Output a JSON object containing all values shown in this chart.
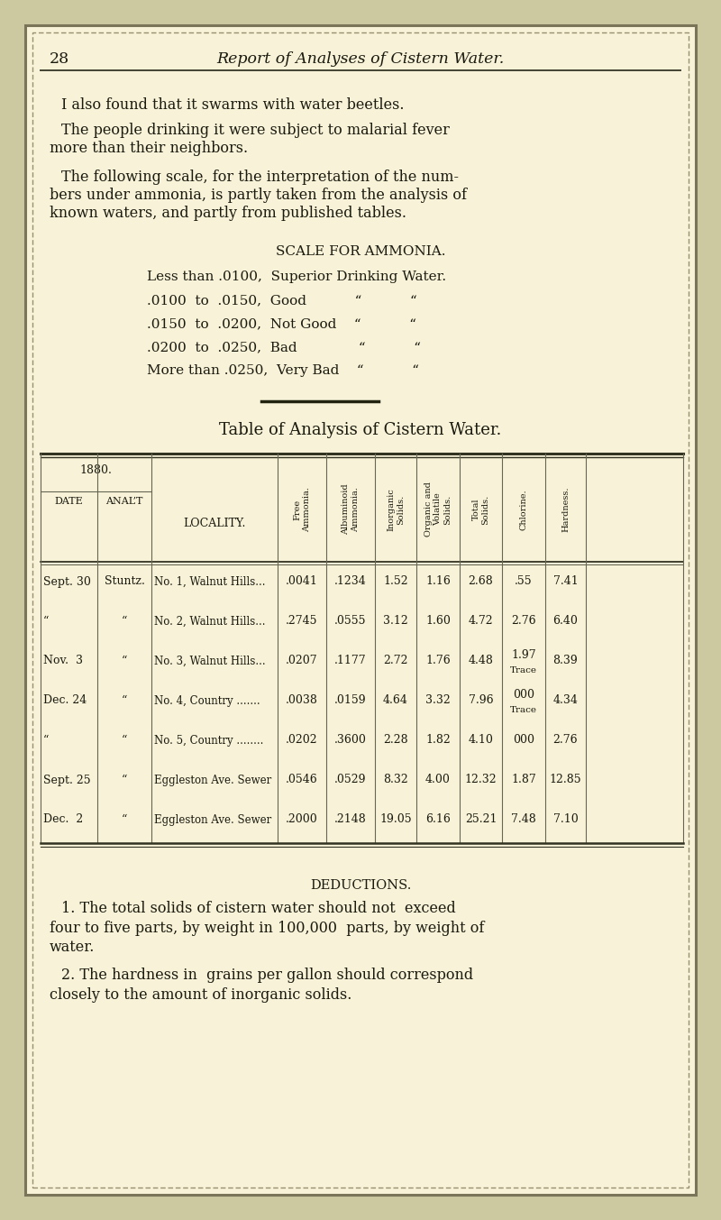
{
  "bg_color": "#f7f2d8",
  "outer_border_color": "#9a9070",
  "text_color": "#1a1a0e",
  "page_num": "28",
  "page_title": "Report of Analyses of Cistern Water.",
  "para1": "I also found that it swarms with water beetles.",
  "para2_line1": "The people drinking it were subject to malarial fever",
  "para2_line2": "more than their neighbors.",
  "para3_line1": "The following scale, for the interpretation of the num-",
  "para3_line2": "bers under ammonia, is partly taken from the analysis of",
  "para3_line3": "known waters, and partly from published tables.",
  "scale_title": "SCALE FOR AMMONIA.",
  "scale_lines": [
    "Less than .0100,  Superior Drinking Water.",
    ".0100  to  .0150,  Good           “           “",
    ".0150  to  .0200,  Not Good    “           “",
    ".0200  to  .0250,  Bad              “           “",
    "More than .0250,  Very Bad    “           “"
  ],
  "table_title": "Table of Analysis of Cistern Water.",
  "col_headers": [
    "Free\nAmmonia.",
    "Albuminoid\nAmmonia.",
    "Inorganic\nSolids.",
    "Organic and\nVolatile\nSolids.",
    "Total\nSolids.",
    "Chlorine.",
    "Hardness."
  ],
  "rows": [
    {
      "date": "Sept. 30",
      "analt": "Stuntz.",
      "locality": "No. 1, Walnut Hills...",
      "fa": ".0041",
      "aa": ".1234",
      "is_": "1.52",
      "ovs": "1.16",
      "ts": "2.68",
      "cl": ".55",
      "hard": "7.41",
      "cl_note": "",
      "hard_note": ""
    },
    {
      "date": "“",
      "analt": "“",
      "locality": "No. 2, Walnut Hills...",
      "fa": ".2745",
      "aa": ".0555",
      "is_": "3.12",
      "ovs": "1.60",
      "ts": "4.72",
      "cl": "2.76",
      "hard": "6.40",
      "cl_note": "",
      "hard_note": ""
    },
    {
      "date": "Nov.  3",
      "analt": "“",
      "locality": "No. 3, Walnut Hills...",
      "fa": ".0207",
      "aa": ".1177",
      "is_": "2.72",
      "ovs": "1.76",
      "ts": "4.48",
      "cl": "1.97",
      "hard": "8.39",
      "cl_note": "Trace",
      "hard_note": ""
    },
    {
      "date": "Dec. 24",
      "analt": "“",
      "locality": "No. 4, Country .......",
      "fa": ".0038",
      "aa": ".0159",
      "is_": "4.64",
      "ovs": "3.32",
      "ts": "7.96",
      "cl": "000",
      "hard": "4.34",
      "cl_note": "Trace",
      "hard_note": ""
    },
    {
      "date": "“",
      "analt": "“",
      "locality": "No. 5, Country ........",
      "fa": ".0202",
      "aa": ".3600",
      "is_": "2.28",
      "ovs": "1.82",
      "ts": "4.10",
      "cl": "000",
      "hard": "2.76",
      "cl_note": "",
      "hard_note": ""
    },
    {
      "date": "Sept. 25",
      "analt": "“",
      "locality": "Eggleston Ave. Sewer",
      "fa": ".0546",
      "aa": ".0529",
      "is_": "8.32",
      "ovs": "4.00",
      "ts": "12.32",
      "cl": "1.87",
      "hard": "12.85",
      "cl_note": "",
      "hard_note": ""
    },
    {
      "date": "Dec.  2",
      "analt": "“",
      "locality": "Eggleston Ave. Sewer",
      "fa": ".2000",
      "aa": ".2148",
      "is_": "19.05",
      "ovs": "6.16",
      "ts": "25.21",
      "cl": "7.48",
      "hard": "7.10",
      "cl_note": "",
      "hard_note": ""
    }
  ],
  "deductions_title": "DEDUCTIONS.",
  "ded1_lines": [
    "1. The total solids of cistern water should not  exceed",
    "four to five parts, by weight in 100,000  parts, by weight of",
    "water."
  ],
  "ded2_lines": [
    "2. The hardness in  grains per gallon should correspond",
    "closely to the amount of inorganic solids."
  ]
}
